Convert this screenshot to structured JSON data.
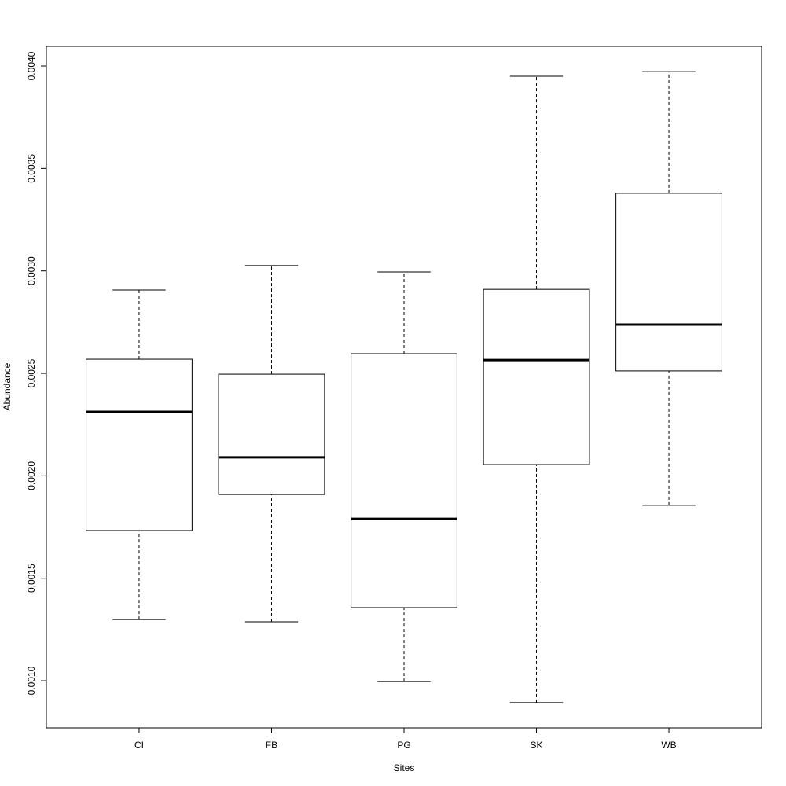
{
  "chart_data": {
    "type": "boxplot",
    "x_label": "Sites",
    "y_label": "Abundance",
    "categories": [
      "CI",
      "FB",
      "PG",
      "SK",
      "WB"
    ],
    "whisker_low": [
      0.001299,
      0.001288,
      0.000996,
      0.000893,
      0.001856
    ],
    "q1": [
      0.001733,
      0.001909,
      0.001357,
      0.002055,
      0.002512
    ],
    "median": [
      0.002312,
      0.00209,
      0.00179,
      0.002565,
      0.002738
    ],
    "q3": [
      0.002569,
      0.002496,
      0.002596,
      0.00291,
      0.003379
    ],
    "whisker_high": [
      0.002907,
      0.003026,
      0.002995,
      0.00395,
      0.003973
    ],
    "ylim": [
      0.00077,
      0.004096
    ],
    "yticks": [
      {
        "value": 0.001,
        "label": "0.0010"
      },
      0.0015,
      {
        "value": 0.002,
        "label": "0.0020"
      },
      0.0025,
      {
        "value": 0.003,
        "label": "0.0030"
      },
      0.0035,
      {
        "value": 0.004,
        "label": "0.0040"
      }
    ],
    "color": "#ffffff"
  }
}
